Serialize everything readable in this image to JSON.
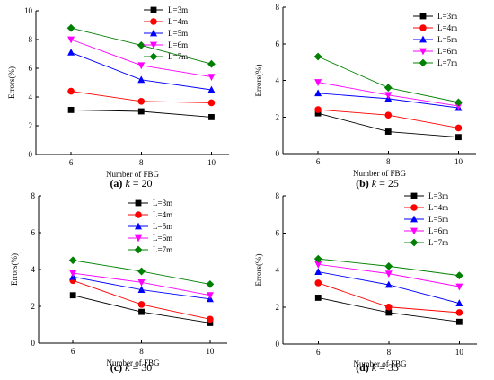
{
  "legend_colors": {
    "L=3m": "#000000",
    "L=4m": "#ff0000",
    "L=5m": "#0000ff",
    "L=6m": "#ff00ff",
    "L=7m": "#008000"
  },
  "chart_data": [
    {
      "type": "line",
      "caption": {
        "letter": "(a)",
        "param": "k",
        "rest": " = 20"
      },
      "xlabel": "Number of FBG",
      "ylabel": "Errors(%)",
      "x": [
        6,
        8,
        10
      ],
      "xlim": [
        5,
        10.5
      ],
      "xticks": [
        6,
        8,
        10
      ],
      "ylim": [
        0,
        10
      ],
      "yticks": [
        0,
        2,
        4,
        6,
        8,
        10
      ],
      "legend_position": "top-right",
      "grid": false,
      "series": [
        {
          "name": "L=3m",
          "marker": "square",
          "values": [
            3.1,
            3.0,
            2.6
          ]
        },
        {
          "name": "L=4m",
          "marker": "circle",
          "values": [
            4.4,
            3.7,
            3.6
          ]
        },
        {
          "name": "L=5m",
          "marker": "triangle-up",
          "values": [
            7.1,
            5.2,
            4.5
          ]
        },
        {
          "name": "L=6m",
          "marker": "triangle-down",
          "values": [
            8.0,
            6.2,
            5.4
          ]
        },
        {
          "name": "L=7m",
          "marker": "diamond",
          "values": [
            8.8,
            7.6,
            6.3
          ]
        }
      ]
    },
    {
      "type": "line",
      "caption": {
        "letter": "(b)",
        "param": "k",
        "rest": " = 25"
      },
      "xlabel": "Number of FBG",
      "ylabel": "Errors(%)",
      "x": [
        6,
        8,
        10
      ],
      "xlim": [
        5,
        10.5
      ],
      "xticks": [
        6,
        8,
        10
      ],
      "ylim": [
        0,
        8
      ],
      "yticks": [
        0,
        2,
        4,
        6,
        8
      ],
      "legend_position": "top-right",
      "grid": false,
      "series": [
        {
          "name": "L=3m",
          "marker": "square",
          "values": [
            2.2,
            1.2,
            0.9
          ]
        },
        {
          "name": "L=4m",
          "marker": "circle",
          "values": [
            2.4,
            2.1,
            1.4
          ]
        },
        {
          "name": "L=5m",
          "marker": "triangle-up",
          "values": [
            3.3,
            3.0,
            2.5
          ]
        },
        {
          "name": "L=6m",
          "marker": "triangle-down",
          "values": [
            3.9,
            3.2,
            2.6
          ]
        },
        {
          "name": "L=7m",
          "marker": "diamond",
          "values": [
            5.3,
            3.6,
            2.8
          ]
        }
      ]
    },
    {
      "type": "line",
      "caption": {
        "letter": "(c)",
        "param": "k",
        "rest": " = 30"
      },
      "xlabel": "Number of FBG",
      "ylabel": "Errors(%)",
      "x": [
        6,
        8,
        10
      ],
      "xlim": [
        5,
        10.5
      ],
      "xticks": [
        6,
        8,
        10
      ],
      "ylim": [
        0,
        8
      ],
      "yticks": [
        0,
        2,
        4,
        6,
        8
      ],
      "legend_position": "top-right",
      "grid": false,
      "series": [
        {
          "name": "L=3m",
          "marker": "square",
          "values": [
            2.6,
            1.7,
            1.1
          ]
        },
        {
          "name": "L=4m",
          "marker": "circle",
          "values": [
            3.4,
            2.1,
            1.3
          ]
        },
        {
          "name": "L=5m",
          "marker": "triangle-up",
          "values": [
            3.6,
            2.9,
            2.4
          ]
        },
        {
          "name": "L=6m",
          "marker": "triangle-down",
          "values": [
            3.8,
            3.3,
            2.6
          ]
        },
        {
          "name": "L=7m",
          "marker": "diamond",
          "values": [
            4.5,
            3.9,
            3.2
          ]
        }
      ]
    },
    {
      "type": "line",
      "caption": {
        "letter": "(d)",
        "param": "k",
        "rest": " = 35"
      },
      "xlabel": "Number of FBG",
      "ylabel": "Errors(%)",
      "x": [
        6,
        8,
        10
      ],
      "xlim": [
        5,
        10.5
      ],
      "xticks": [
        6,
        8,
        10
      ],
      "ylim": [
        0,
        8
      ],
      "yticks": [
        0,
        2,
        4,
        6,
        8
      ],
      "legend_position": "top-right",
      "grid": false,
      "series": [
        {
          "name": "L=3m",
          "marker": "square",
          "values": [
            2.5,
            1.7,
            1.2
          ]
        },
        {
          "name": "L=4m",
          "marker": "circle",
          "values": [
            3.3,
            2.0,
            1.7
          ]
        },
        {
          "name": "L=5m",
          "marker": "triangle-up",
          "values": [
            3.9,
            3.2,
            2.2
          ]
        },
        {
          "name": "L=6m",
          "marker": "triangle-down",
          "values": [
            4.3,
            3.8,
            3.1
          ]
        },
        {
          "name": "L=7m",
          "marker": "diamond",
          "values": [
            4.6,
            4.2,
            3.7
          ]
        }
      ]
    }
  ]
}
